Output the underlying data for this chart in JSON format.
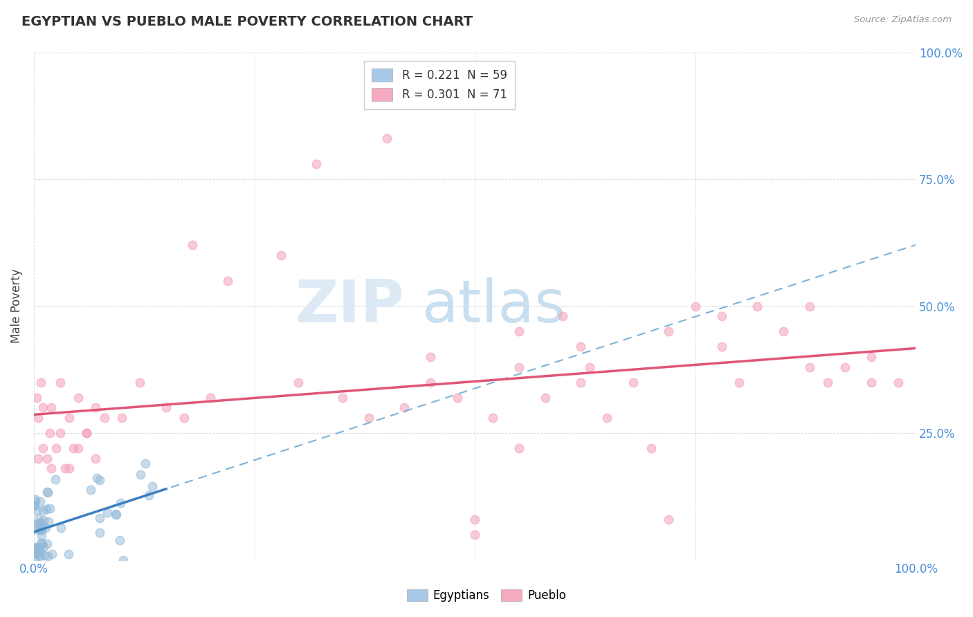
{
  "title": "EGYPTIAN VS PUEBLO MALE POVERTY CORRELATION CHART",
  "source": "Source: ZipAtlas.com",
  "ylabel": "Male Poverty",
  "background_color": "#ffffff",
  "plot_bg_color": "#ffffff",
  "grid_color": "#cccccc",
  "egyptians_color": "#90b8d8",
  "pueblo_color": "#f5a0b8",
  "trend_egyptian_color": "#3a7fc1",
  "trend_pueblo_color": "#e05578",
  "trend_dashed_color": "#7ab3d8",
  "legend_entries": [
    {
      "label": "R = 0.221  N = 59",
      "color": "#a8c8e8"
    },
    {
      "label": "R = 0.301  N = 71",
      "color": "#f5aac0"
    }
  ],
  "legend_labels": [
    "Egyptians",
    "Pueblo"
  ],
  "watermark_zip": "ZIP",
  "watermark_atlas": "atlas",
  "xlim": [
    0.0,
    1.0
  ],
  "ylim": [
    0.0,
    1.0
  ]
}
